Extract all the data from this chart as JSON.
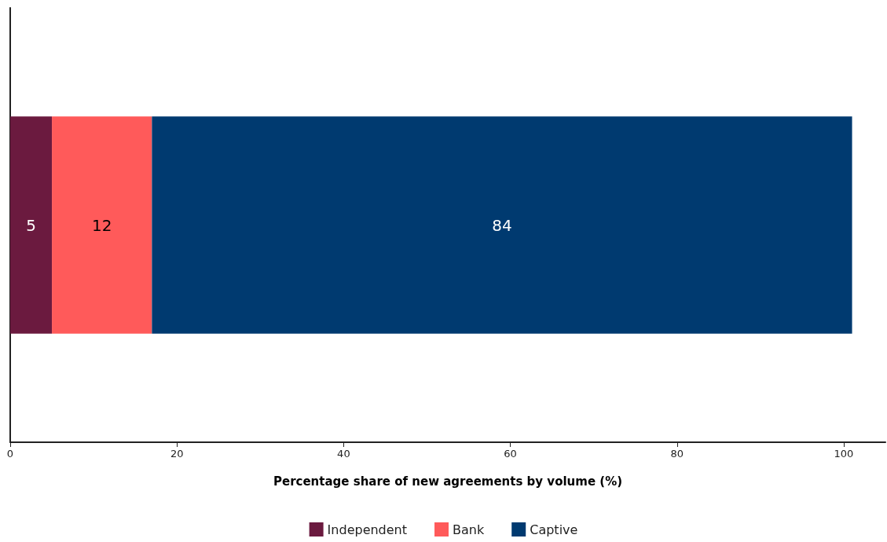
{
  "chart_data": {
    "type": "bar",
    "orientation": "horizontal",
    "stacked": true,
    "categories": [
      null
    ],
    "series": [
      {
        "name": "Independent",
        "color": "#6b1a3f",
        "values": [
          5
        ]
      },
      {
        "name": "Bank",
        "color": "#ff5a5a",
        "values": [
          12
        ]
      },
      {
        "name": "Captive",
        "color": "#003a70",
        "values": [
          84
        ]
      }
    ],
    "xlabel": "Percentage share of new agreements by volume (%)",
    "xlim": [
      0,
      105
    ],
    "xticks": [
      0,
      20,
      40,
      60,
      80,
      100
    ],
    "data_labels": true,
    "grid": false,
    "legend": "bottom"
  }
}
